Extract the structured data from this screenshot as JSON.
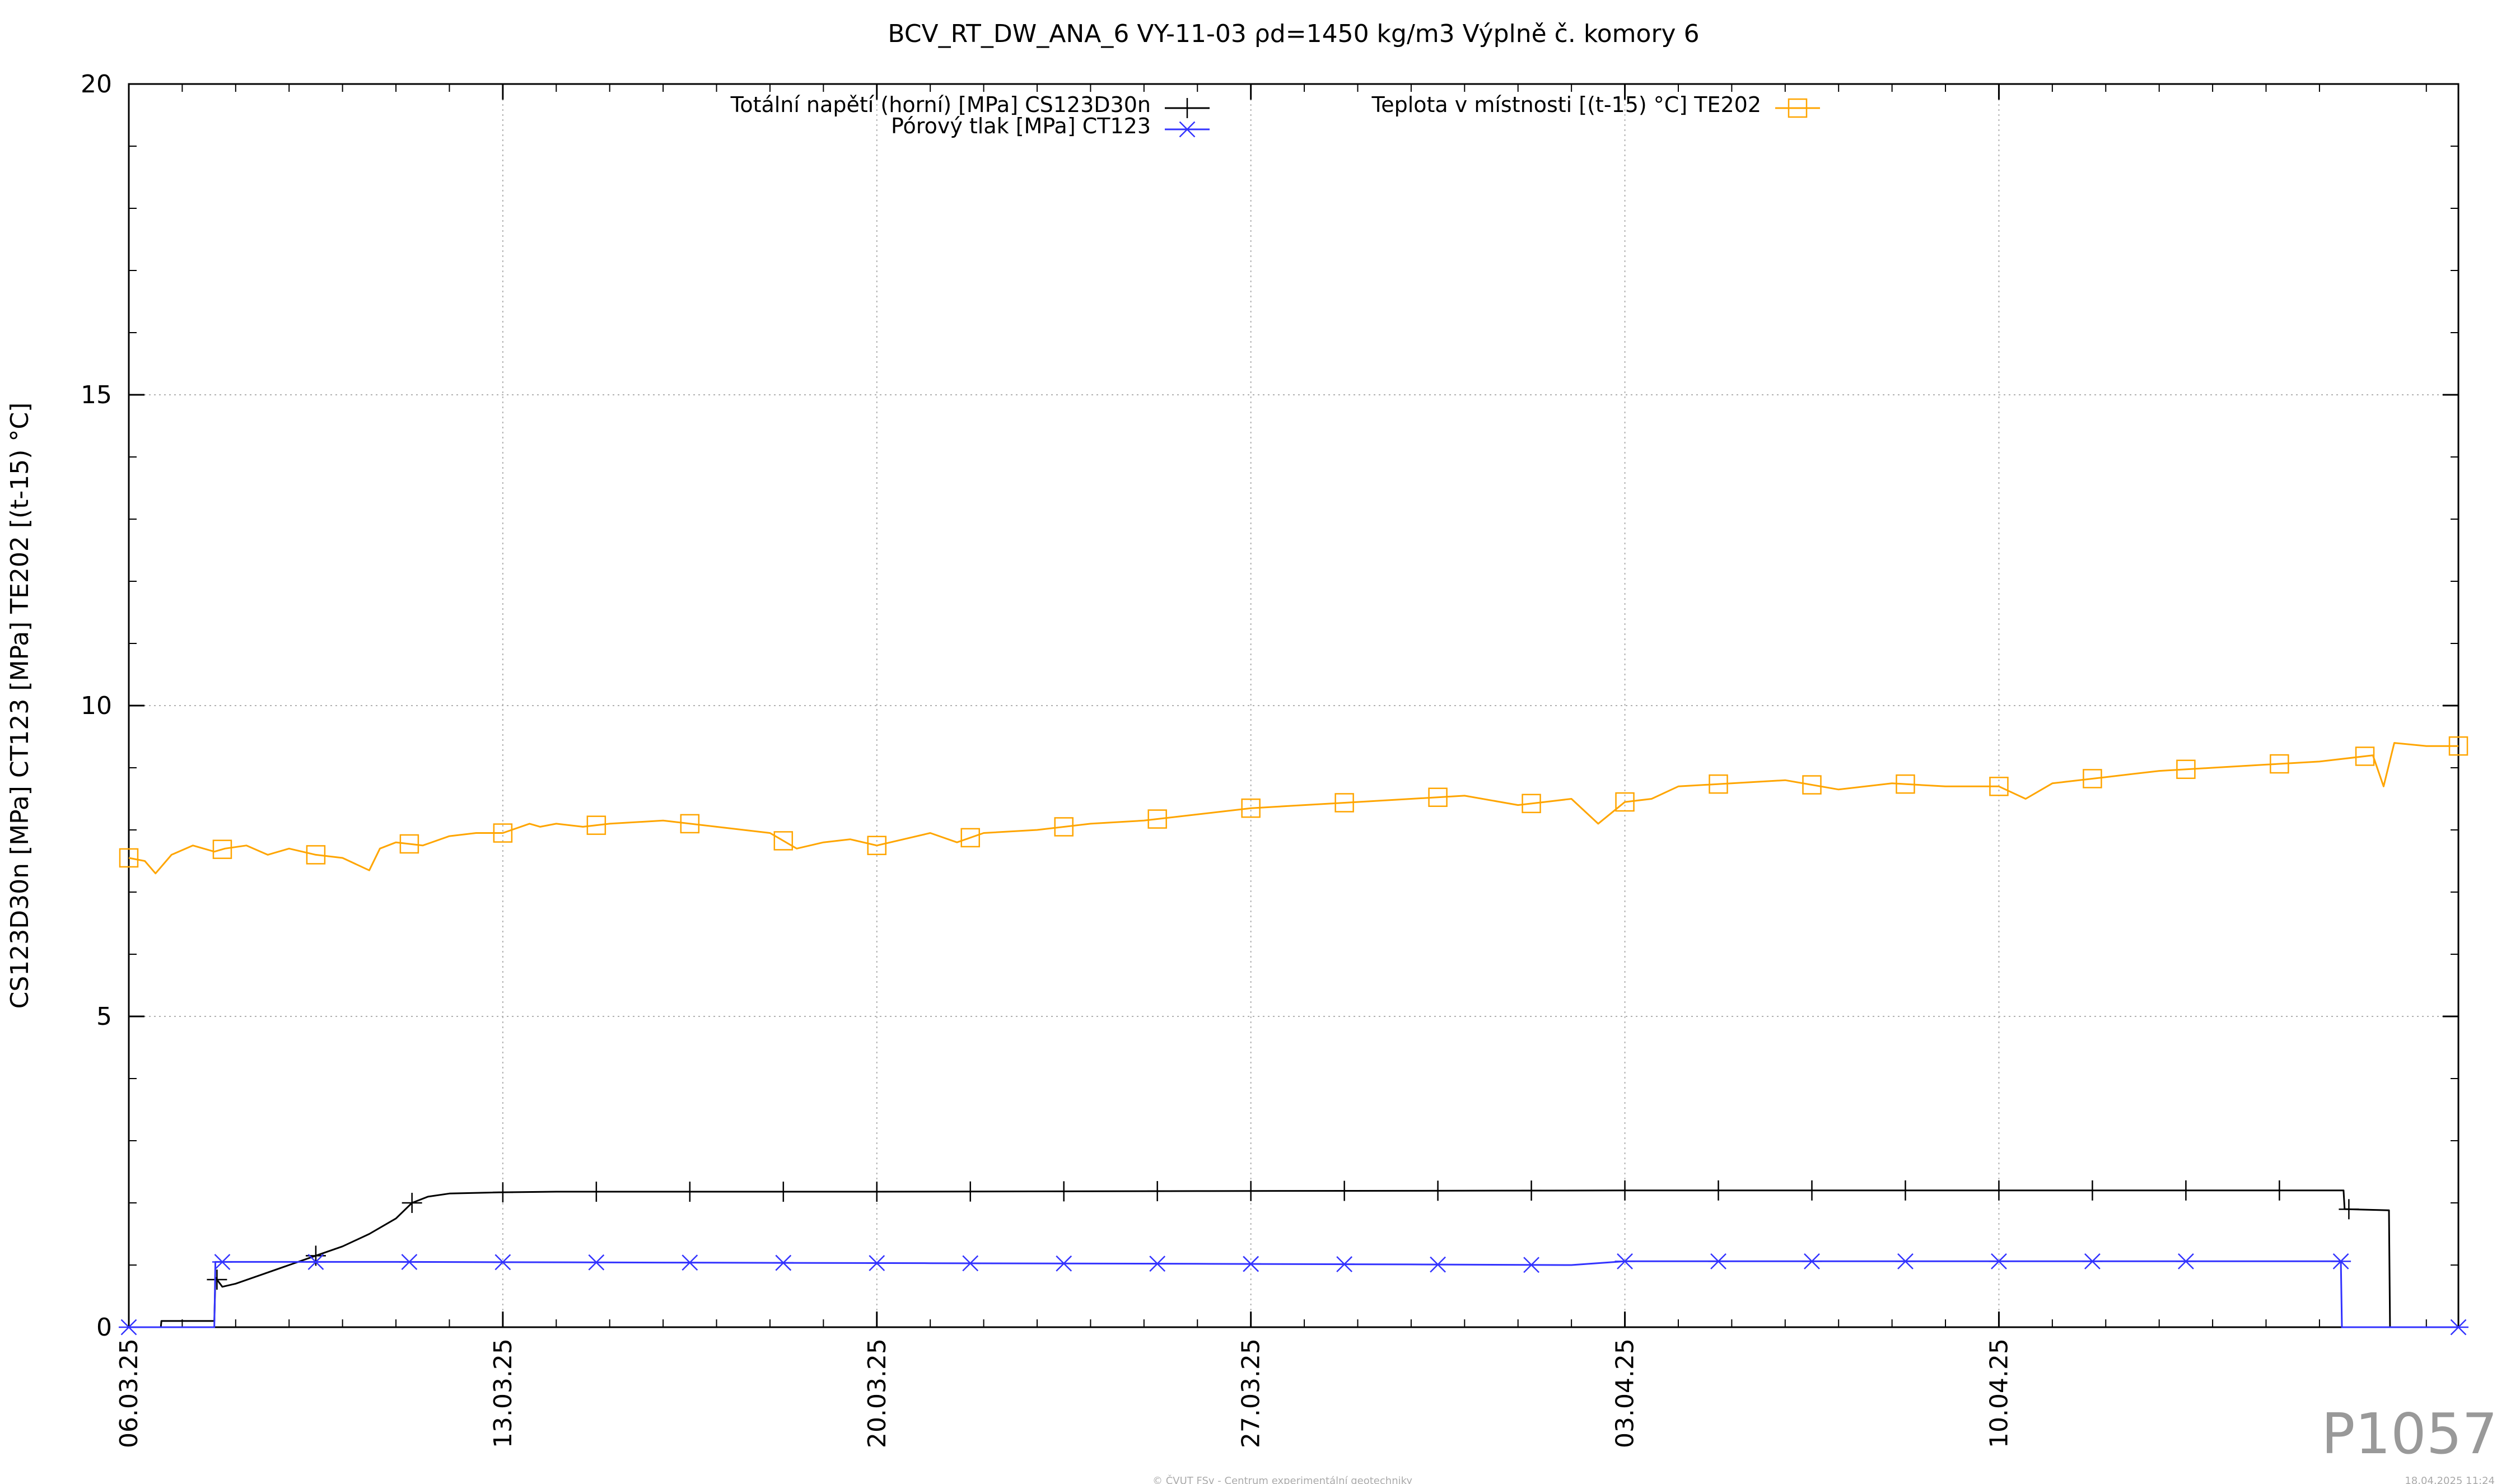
{
  "chart_data": {
    "type": "line",
    "title": "BCV_RT_DW_ANA_6 VY-11-03 ρd=1450 kg/m3 Výplně č. komory 6",
    "ylabel": "CS123D30n [MPa] CT123 [MPa] TE202 [(t-15) °C]",
    "xlabel": "",
    "ylim": [
      0,
      20
    ],
    "xlim": [
      0,
      43.6
    ],
    "x_unit": "days since 06.03.25",
    "y_ticks": [
      0,
      5,
      10,
      15,
      20
    ],
    "x_ticks": [
      {
        "day": 0,
        "label": "06.03.25"
      },
      {
        "day": 7,
        "label": "13.03.25"
      },
      {
        "day": 14,
        "label": "20.03.25"
      },
      {
        "day": 21,
        "label": "27.03.25"
      },
      {
        "day": 28,
        "label": "03.04.25"
      },
      {
        "day": 35,
        "label": "10.04.25"
      }
    ],
    "grid": true,
    "legend_position": "top",
    "series": [
      {
        "name": "Totální napětí (horní) [MPa] CS123D30n",
        "color": "#000000",
        "marker": "plus",
        "x": [
          0,
          0.6,
          0.61,
          1.3,
          1.6,
          1.62,
          1.75,
          2.0,
          2.5,
          3.0,
          3.5,
          4.0,
          4.5,
          5.0,
          5.3,
          5.6,
          6.0,
          7.0,
          8.0,
          10.0,
          14.0,
          20.0,
          28.0,
          35.0,
          40.0,
          41.45,
          41.47,
          42.3,
          42.32,
          43.6
        ],
        "y": [
          0,
          0,
          0.1,
          0.1,
          0.1,
          0.8,
          0.65,
          0.7,
          0.85,
          1.0,
          1.15,
          1.3,
          1.5,
          1.75,
          2.0,
          2.1,
          2.15,
          2.17,
          2.18,
          2.18,
          2.18,
          2.19,
          2.2,
          2.2,
          2.2,
          2.2,
          1.9,
          1.88,
          0,
          0
        ],
        "markers_x": [
          1.65,
          3.5,
          5.3,
          7.0,
          8.75,
          10.5,
          12.25,
          14.0,
          15.75,
          17.5,
          19.25,
          21.0,
          22.75,
          24.5,
          26.25,
          28.0,
          29.75,
          31.5,
          33.25,
          35.0,
          36.75,
          38.5,
          40.25,
          41.55
        ]
      },
      {
        "name": "Pórový tlak [MPa] CT123",
        "color": "#3333ff",
        "marker": "asterisk",
        "x": [
          0,
          1.6,
          1.62,
          5.0,
          10.0,
          15.0,
          20.0,
          24.0,
          27.0,
          28.0,
          30.0,
          35.0,
          41.4,
          41.42,
          43.6
        ],
        "y": [
          0,
          0,
          1.05,
          1.05,
          1.04,
          1.03,
          1.02,
          1.01,
          1.0,
          1.06,
          1.06,
          1.06,
          1.06,
          0,
          0
        ],
        "markers_x": [
          0,
          1.75,
          3.5,
          5.25,
          7.0,
          8.75,
          10.5,
          12.25,
          14.0,
          15.75,
          17.5,
          19.25,
          21.0,
          22.75,
          24.5,
          26.25,
          28.0,
          29.75,
          31.5,
          33.25,
          35.0,
          36.75,
          38.5,
          41.4,
          43.6
        ]
      },
      {
        "name": "Teplota v místnosti [(t-15) °C] TE202",
        "color": "#ffa500",
        "marker": "square",
        "x": [
          0,
          0.3,
          0.5,
          0.8,
          1.2,
          1.6,
          1.8,
          2.2,
          2.6,
          3.0,
          3.5,
          4.0,
          4.5,
          4.7,
          5.0,
          5.5,
          6.0,
          6.5,
          7.0,
          7.5,
          7.7,
          8.0,
          8.5,
          9.0,
          10.0,
          11.0,
          12.0,
          12.5,
          13.0,
          13.5,
          14.0,
          15.0,
          15.5,
          16.0,
          17.0,
          18.0,
          19.0,
          20.0,
          20.5,
          21.0,
          22.0,
          23.0,
          24.0,
          25.0,
          26.0,
          26.5,
          27.0,
          27.5,
          28.0,
          28.5,
          29.0,
          30.0,
          31.0,
          32.0,
          33.0,
          34.0,
          35.0,
          35.5,
          36.0,
          37.0,
          38.0,
          39.0,
          40.0,
          41.0,
          42.0,
          42.2,
          42.4,
          43.0,
          43.6
        ],
        "y": [
          7.55,
          7.5,
          7.3,
          7.6,
          7.75,
          7.65,
          7.7,
          7.75,
          7.6,
          7.7,
          7.6,
          7.55,
          7.35,
          7.7,
          7.8,
          7.75,
          7.9,
          7.95,
          7.95,
          8.1,
          8.05,
          8.1,
          8.05,
          8.1,
          8.15,
          8.05,
          7.95,
          7.7,
          7.8,
          7.85,
          7.75,
          7.95,
          7.8,
          7.95,
          8.0,
          8.1,
          8.15,
          8.25,
          8.3,
          8.35,
          8.4,
          8.45,
          8.5,
          8.55,
          8.4,
          8.45,
          8.5,
          8.1,
          8.45,
          8.5,
          8.7,
          8.75,
          8.8,
          8.65,
          8.75,
          8.7,
          8.7,
          8.5,
          8.75,
          8.85,
          8.95,
          9.0,
          9.05,
          9.1,
          9.2,
          8.7,
          9.4,
          9.35,
          9.35
        ],
        "markers_x": [
          0,
          1.75,
          3.5,
          5.25,
          7.0,
          8.75,
          10.5,
          12.25,
          14.0,
          15.75,
          17.5,
          19.25,
          21.0,
          22.75,
          24.5,
          26.25,
          28.0,
          29.75,
          31.5,
          33.25,
          35.0,
          36.75,
          38.5,
          40.25,
          41.85,
          43.6
        ]
      }
    ]
  },
  "watermark": "P1057",
  "footer_center": "© ČVUT FSv - Centrum experimentální geotechniky",
  "footer_right": "18.04.2025 11:24"
}
